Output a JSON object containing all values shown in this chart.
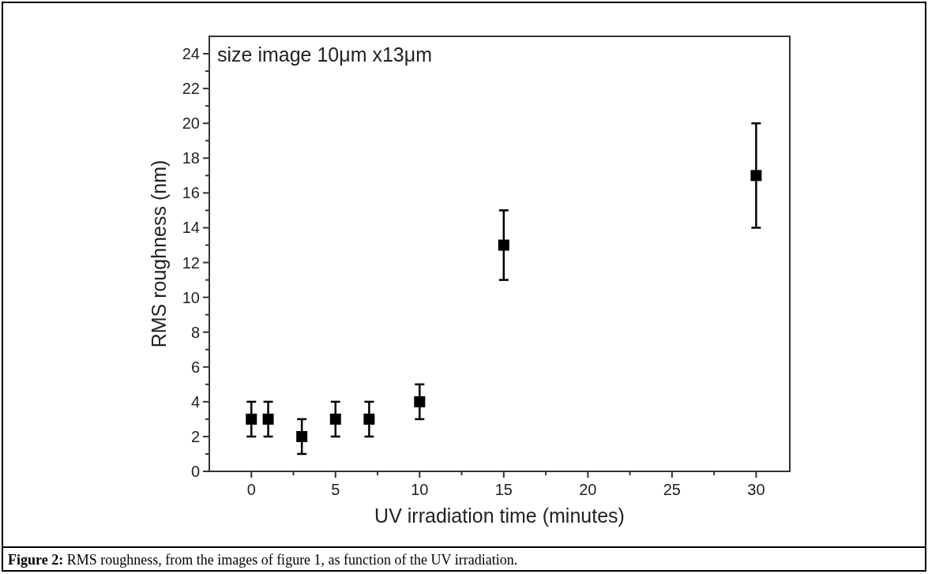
{
  "chart_data": {
    "type": "scatter",
    "xlabel": "UV irradiation time (minutes)",
    "ylabel": "RMS roughness (nm)",
    "annotations": [
      "size image 10μm x13μm",
      "Figure 2: RMS roughness, from the images of figure 1, as function of the UV irradiation."
    ],
    "x": [
      0,
      1,
      3,
      5,
      7,
      10,
      15,
      30
    ],
    "series": [
      {
        "color": "#000000",
        "values": [
          3,
          3,
          2,
          3,
          3,
          4,
          13,
          17
        ],
        "errors": [
          1,
          1,
          1,
          1,
          1,
          1,
          2,
          3
        ]
      }
    ],
    "xlim": [
      -2.5,
      32
    ],
    "xticks": [
      0,
      {
        "value": 2.5,
        "label": null
      },
      5,
      {
        "value": 7.5,
        "label": null
      },
      10,
      {
        "value": 12.5,
        "label": null
      },
      15,
      {
        "value": 17.5,
        "label": null
      },
      20,
      {
        "value": 22.5,
        "label": null
      },
      25,
      {
        "value": 27.5,
        "label": null
      },
      30
    ],
    "ylim": [
      0,
      25
    ],
    "yticks": [
      0,
      {
        "value": 1,
        "label": null
      },
      2,
      {
        "value": 3,
        "label": null
      },
      4,
      {
        "value": 5,
        "label": null
      },
      6,
      {
        "value": 7,
        "label": null
      },
      8,
      {
        "value": 9,
        "label": null
      },
      10,
      {
        "value": 11,
        "label": null
      },
      12,
      {
        "value": 13,
        "label": null
      },
      14,
      {
        "value": 15,
        "label": null
      },
      16,
      {
        "value": 17,
        "label": null
      },
      18,
      {
        "value": 19,
        "label": null
      },
      20,
      {
        "value": 21,
        "label": null
      },
      22,
      {
        "value": 23,
        "label": null
      },
      24
    ],
    "marker": "square",
    "grid": false
  }
}
